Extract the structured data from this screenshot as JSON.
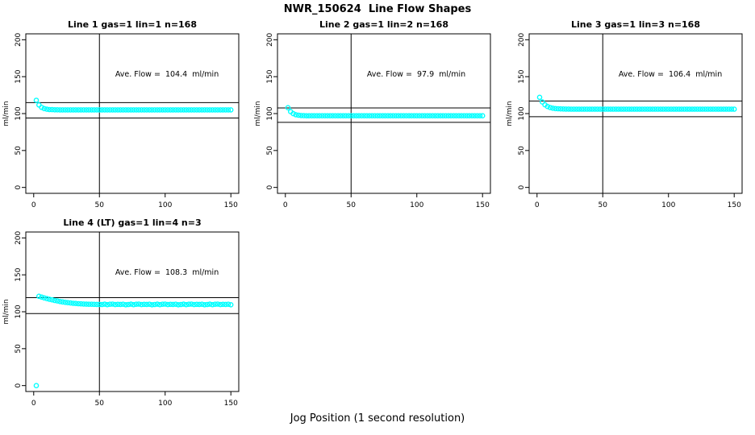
{
  "figure": {
    "title": "NWR_150624  Line Flow Shapes",
    "xlabel": "Jog Position (1 second resolution)"
  },
  "chart_data": {
    "type": "scatter",
    "title": "NWR_150624  Line Flow Shapes",
    "xlabel": "Jog Position (1 second resolution)",
    "ylabel": "ml/min",
    "xlim": [
      0,
      150
    ],
    "ylim": [
      0,
      200
    ],
    "xticks": [
      0,
      50,
      100,
      150
    ],
    "yticks": [
      0,
      50,
      100,
      150,
      200
    ],
    "point_color": "#00FFFF",
    "line_color": "#000000",
    "legend": "none",
    "grid": false,
    "x": [
      2,
      4,
      6,
      8,
      10,
      12,
      14,
      16,
      18,
      20,
      22,
      24,
      26,
      28,
      30,
      32,
      34,
      36,
      38,
      40,
      42,
      44,
      46,
      48,
      50,
      52,
      54,
      56,
      58,
      60,
      62,
      64,
      66,
      68,
      70,
      72,
      74,
      76,
      78,
      80,
      82,
      84,
      86,
      88,
      90,
      92,
      94,
      96,
      98,
      100,
      102,
      104,
      106,
      108,
      110,
      112,
      114,
      116,
      118,
      120,
      122,
      124,
      126,
      128,
      130,
      132,
      134,
      136,
      138,
      140,
      142,
      144,
      146,
      148,
      150
    ],
    "panels": [
      {
        "title": "Line 1 gas=1 lin=1 n=168",
        "ave_flow": 104.4,
        "annotation": "Ave. Flow =  104.4  ml/min",
        "vline": 50,
        "hlines": [
          114.8,
          94.0
        ],
        "y": [
          118.0,
          111.7,
          108.4,
          106.8,
          105.9,
          105.5,
          105.3,
          105.1,
          105.1,
          105.0,
          105.0,
          105.0,
          105.0,
          105.0,
          105.0,
          105.0,
          105.0,
          105.0,
          105.0,
          105.0,
          105.0,
          105.0,
          105.0,
          105.0,
          105.0,
          105.0,
          105.0,
          105.0,
          105.0,
          105.0,
          105.0,
          105.0,
          105.0,
          105.0,
          105.0,
          105.0,
          105.0,
          105.0,
          105.0,
          105.0,
          105.0,
          105.0,
          105.0,
          105.0,
          105.0,
          105.0,
          105.0,
          105.0,
          105.0,
          105.0,
          105.0,
          105.0,
          105.0,
          105.0,
          105.0,
          105.0,
          105.0,
          105.0,
          105.0,
          105.0,
          105.0,
          105.0,
          105.0,
          105.0,
          105.0,
          105.0,
          105.0,
          105.0,
          105.0,
          105.0,
          105.0,
          105.0,
          105.0,
          105.0,
          105.0
        ]
      },
      {
        "title": "Line 2 gas=1 lin=2 n=168",
        "ave_flow": 97.9,
        "annotation": "Ave. Flow =  97.9  ml/min",
        "vline": 50,
        "hlines": [
          107.7,
          88.1
        ],
        "y": [
          108.0,
          102.6,
          99.9,
          98.5,
          97.8,
          97.4,
          97.2,
          97.1,
          97.1,
          97.0,
          97.0,
          97.0,
          97.0,
          97.0,
          97.0,
          97.0,
          97.0,
          97.0,
          97.0,
          97.0,
          97.0,
          97.0,
          97.0,
          97.0,
          97.0,
          97.0,
          97.0,
          97.0,
          97.0,
          97.0,
          97.0,
          97.0,
          97.0,
          97.0,
          97.0,
          97.0,
          97.0,
          97.0,
          97.0,
          97.0,
          97.0,
          97.0,
          97.0,
          97.0,
          97.0,
          97.0,
          97.0,
          97.0,
          97.0,
          97.0,
          97.0,
          97.0,
          97.0,
          97.0,
          97.0,
          97.0,
          97.0,
          97.0,
          97.0,
          97.0,
          97.0,
          97.0,
          97.0,
          97.0,
          97.0,
          97.0,
          97.0,
          97.0,
          97.0,
          97.0,
          97.0,
          97.0,
          97.0,
          97.0,
          97.0
        ]
      },
      {
        "title": "Line 3 gas=1 lin=3 n=168",
        "ave_flow": 106.4,
        "annotation": "Ave. Flow =  106.4  ml/min",
        "vline": 50,
        "hlines": [
          117.0,
          95.8
        ],
        "y": [
          122.0,
          115.7,
          111.9,
          109.6,
          108.2,
          107.3,
          106.8,
          106.5,
          106.3,
          106.2,
          106.1,
          106.1,
          106.0,
          106.0,
          106.0,
          106.0,
          106.0,
          106.0,
          106.0,
          106.0,
          106.0,
          106.0,
          106.0,
          106.0,
          106.0,
          106.0,
          106.0,
          106.0,
          106.0,
          106.0,
          106.0,
          106.0,
          106.0,
          106.0,
          106.0,
          106.0,
          106.0,
          106.0,
          106.0,
          106.0,
          106.0,
          106.0,
          106.0,
          106.0,
          106.0,
          106.0,
          106.0,
          106.0,
          106.0,
          106.0,
          106.0,
          106.0,
          106.0,
          106.0,
          106.0,
          106.0,
          106.0,
          106.0,
          106.0,
          106.0,
          106.0,
          106.0,
          106.0,
          106.0,
          106.0,
          106.0,
          106.0,
          106.0,
          106.0,
          106.0,
          106.0,
          106.0,
          106.0,
          106.0,
          106.0
        ]
      },
      {
        "title": "Line 4 (LT) gas=1 lin=4 n=3",
        "ave_flow": 108.3,
        "annotation": "Ave. Flow =  108.3  ml/min",
        "vline": 50,
        "hlines": [
          119.1,
          97.5
        ],
        "y": [
          0,
          121.0,
          119.9,
          118.8,
          117.8,
          116.9,
          116.1,
          115.3,
          114.6,
          113.9,
          113.3,
          112.8,
          112.3,
          111.9,
          111.5,
          111.2,
          110.9,
          110.7,
          110.5,
          110.3,
          110.2,
          110.1,
          110.0,
          109.9,
          109.9,
          109.8,
          110.3,
          109.6,
          110.1,
          110.4,
          109.7,
          110.0,
          109.9,
          110.2,
          109.5,
          109.8,
          110.3,
          109.6,
          110.1,
          110.4,
          109.7,
          110.0,
          109.9,
          110.2,
          109.5,
          109.8,
          110.3,
          109.6,
          110.1,
          110.4,
          109.7,
          110.0,
          109.9,
          110.2,
          109.5,
          109.8,
          110.3,
          109.6,
          110.1,
          110.4,
          109.7,
          110.0,
          109.9,
          110.2,
          109.5,
          109.8,
          110.3,
          109.6,
          110.1,
          110.4,
          109.7,
          110.0,
          109.9,
          110.2,
          109.5
        ]
      }
    ]
  }
}
